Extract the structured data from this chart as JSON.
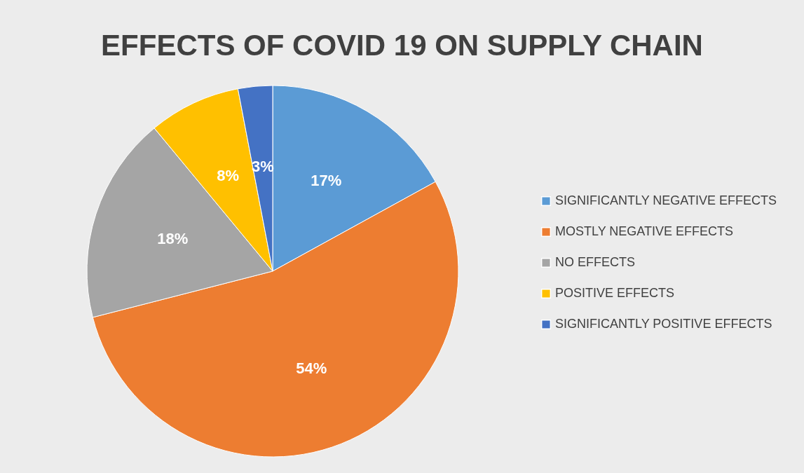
{
  "chart_data": {
    "type": "pie",
    "title": "EFFECTS OF COVID 19 ON SUPPLY CHAIN",
    "categories": [
      "SIGNIFICANTLY NEGATIVE EFFECTS",
      "MOSTLY NEGATIVE EFFECTS",
      "NO EFFECTS",
      "POSITIVE EFFECTS",
      "SIGNIFICANTLY POSITIVE EFFECTS"
    ],
    "values": [
      17,
      54,
      18,
      8,
      3
    ],
    "colors": [
      "#5b9bd5",
      "#ed7d31",
      "#a5a5a5",
      "#ffc000",
      "#4472c4"
    ],
    "value_labels": [
      "17%",
      "54%",
      "18%",
      "8%",
      "3%"
    ],
    "legend": "right"
  }
}
